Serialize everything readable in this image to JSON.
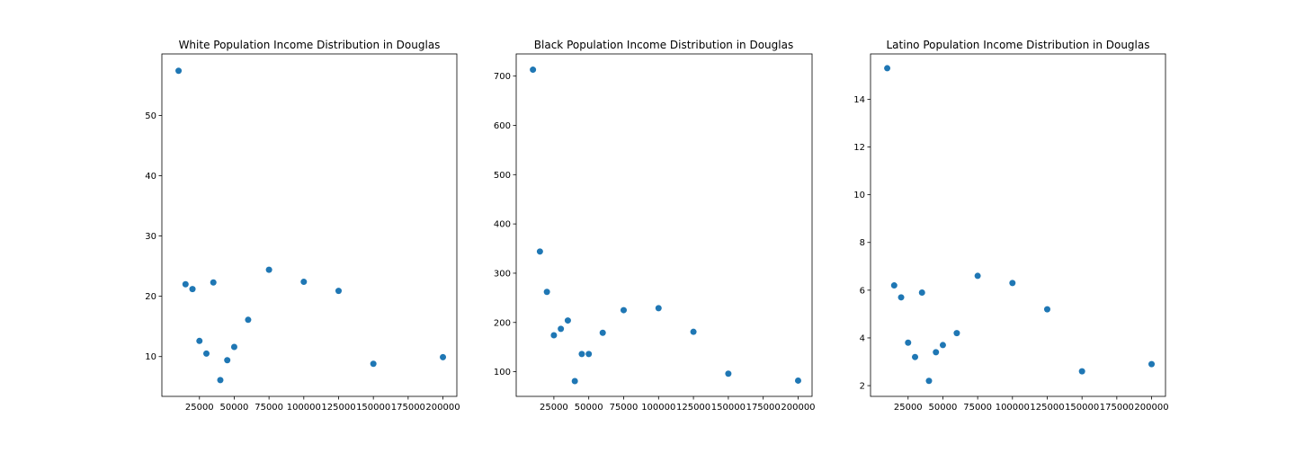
{
  "figure": {
    "background": "#ffffff",
    "marker_color": "#1f77b4"
  },
  "chart_data": [
    {
      "type": "scatter",
      "title": "White Population Income Distribution in Douglas",
      "xlabel": "",
      "ylabel": "",
      "xlim": [
        -2000,
        210000
      ],
      "ylim": [
        3.4,
        60.2
      ],
      "xticks": [
        25000,
        50000,
        75000,
        100000,
        125000,
        150000,
        175000,
        200000
      ],
      "yticks": [
        10,
        20,
        30,
        40,
        50
      ],
      "grid": false,
      "x": [
        10000,
        15000,
        20000,
        25000,
        30000,
        35000,
        40000,
        45000,
        50000,
        60000,
        75000,
        100000,
        125000,
        150000,
        200000
      ],
      "y": [
        57.4,
        22.0,
        21.2,
        12.6,
        10.5,
        22.3,
        6.1,
        9.4,
        11.6,
        16.1,
        24.4,
        22.4,
        20.9,
        8.8,
        9.9
      ]
    },
    {
      "type": "scatter",
      "title": "Black Population Income Distribution in Douglas",
      "xlabel": "",
      "ylabel": "",
      "xlim": [
        -2000,
        210000
      ],
      "ylim": [
        50,
        745
      ],
      "xticks": [
        25000,
        50000,
        75000,
        100000,
        125000,
        150000,
        175000,
        200000
      ],
      "yticks": [
        100,
        200,
        300,
        400,
        500,
        600,
        700
      ],
      "grid": false,
      "x": [
        10000,
        15000,
        20000,
        25000,
        30000,
        35000,
        40000,
        45000,
        50000,
        60000,
        75000,
        100000,
        125000,
        150000,
        200000
      ],
      "y": [
        713,
        344,
        262,
        174,
        187,
        204,
        81,
        136,
        136,
        179,
        225,
        229,
        181,
        96,
        82
      ]
    },
    {
      "type": "scatter",
      "title": "Latino Population Income Distribution in Douglas",
      "xlabel": "",
      "ylabel": "",
      "xlim": [
        -2000,
        210000
      ],
      "ylim": [
        1.55,
        15.9
      ],
      "xticks": [
        25000,
        50000,
        75000,
        100000,
        125000,
        150000,
        175000,
        200000
      ],
      "yticks": [
        2,
        4,
        6,
        8,
        10,
        12,
        14
      ],
      "grid": false,
      "x": [
        10000,
        15000,
        20000,
        25000,
        30000,
        35000,
        40000,
        45000,
        50000,
        60000,
        75000,
        100000,
        125000,
        150000,
        200000
      ],
      "y": [
        15.3,
        6.2,
        5.7,
        3.8,
        3.2,
        5.9,
        2.2,
        3.4,
        3.7,
        4.2,
        6.6,
        6.3,
        5.2,
        2.6,
        2.9
      ]
    }
  ]
}
